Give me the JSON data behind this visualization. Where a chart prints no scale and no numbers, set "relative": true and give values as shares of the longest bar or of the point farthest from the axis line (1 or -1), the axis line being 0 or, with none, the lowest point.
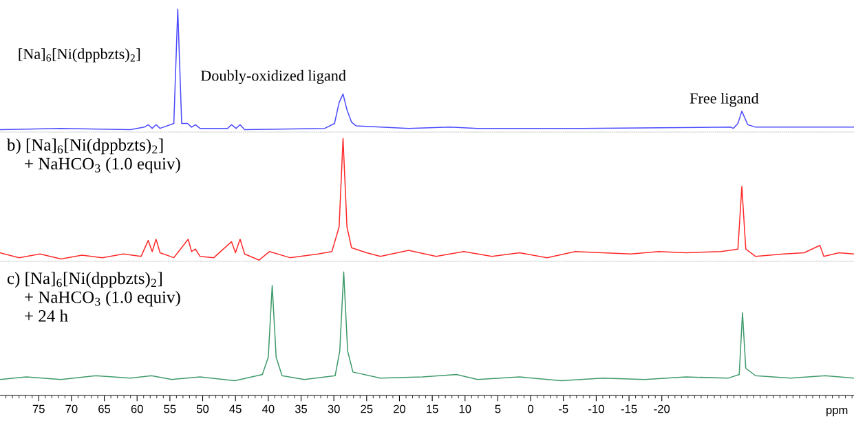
{
  "chart_data": [
    {
      "type": "line",
      "relative": true,
      "xlim": [
        80.9,
        -49.3
      ],
      "xticks": [
        75,
        70,
        65,
        60,
        55,
        50,
        45,
        40,
        35,
        30,
        25,
        20,
        15,
        10,
        5,
        0,
        -5,
        -10,
        -15,
        -20
      ],
      "tick_labels": false,
      "x": [
        80.9,
        71.6,
        61.0,
        58.9,
        58.3,
        57.7,
        57.1,
        56.5,
        54.4,
        53.8,
        53.2,
        52.3,
        51.7,
        51.1,
        50.4,
        46.2,
        45.6,
        44.9,
        44.3,
        43.6,
        31.4,
        29.9,
        29.2,
        28.6,
        28.0,
        27.3,
        26.6,
        18.6,
        12.3,
        8.1,
        -7.8,
        -30.5,
        -30.9,
        -31.6,
        -32.2,
        -33.1,
        -34.3,
        -49.3
      ],
      "series": [
        {
          "color": "#4b4bff",
          "values": [
            0.02,
            0.03,
            0.02,
            0.04,
            0.06,
            0.03,
            0.06,
            0.03,
            0.07,
            1.0,
            0.07,
            0.07,
            0.04,
            0.06,
            0.03,
            0.03,
            0.06,
            0.03,
            0.06,
            0.02,
            0.03,
            0.07,
            0.24,
            0.31,
            0.18,
            0.08,
            0.05,
            0.03,
            0.04,
            0.03,
            0.03,
            0.04,
            0.03,
            0.07,
            0.17,
            0.06,
            0.04,
            0.04
          ]
        }
      ],
      "annotations": [
        "[Na]$_{6}$[Ni(dppbzts)$_{2}$]",
        "Doubly-oxidized ligand",
        "Free ligand"
      ]
    },
    {
      "type": "line",
      "relative": true,
      "xlim": [
        80.9,
        -49.3
      ],
      "xticks": [
        75,
        70,
        65,
        60,
        55,
        50,
        45,
        40,
        35,
        30,
        25,
        20,
        15,
        10,
        5,
        0,
        -5,
        -10,
        -15,
        -20
      ],
      "tick_labels": false,
      "x": [
        80.9,
        78.0,
        74.8,
        71.6,
        68.4,
        65.3,
        62.1,
        59.4,
        58.3,
        57.7,
        57.1,
        56.5,
        54.4,
        52.2,
        51.7,
        51.1,
        50.4,
        48.3,
        45.6,
        45.0,
        44.3,
        43.6,
        41.4,
        39.8,
        36.7,
        32.4,
        30.3,
        29.2,
        28.6,
        28.0,
        27.3,
        25.0,
        22.9,
        18.6,
        14.4,
        10.2,
        5.9,
        1.7,
        -2.5,
        -6.8,
        -11.0,
        -15.3,
        -19.5,
        -23.7,
        -29.0,
        -31.6,
        -32.2,
        -32.8,
        -34.3,
        -38.6,
        -41.7,
        -44.1,
        -44.7,
        -47.0,
        -49.3
      ],
      "series": [
        {
          "color": "#ff2a2a",
          "values": [
            0.07,
            0.03,
            0.06,
            0.02,
            0.05,
            0.03,
            0.06,
            0.04,
            0.17,
            0.08,
            0.18,
            0.07,
            0.03,
            0.18,
            0.08,
            0.1,
            0.04,
            0.03,
            0.16,
            0.07,
            0.18,
            0.06,
            0.01,
            0.08,
            0.03,
            0.06,
            0.08,
            0.28,
            1.0,
            0.28,
            0.11,
            0.07,
            0.04,
            0.09,
            0.04,
            0.08,
            0.04,
            0.07,
            0.03,
            0.08,
            0.07,
            0.06,
            0.08,
            0.07,
            0.08,
            0.1,
            0.61,
            0.1,
            0.04,
            0.06,
            0.07,
            0.13,
            0.04,
            0.07,
            0.06
          ]
        }
      ],
      "annotations": [
        "b) [Na]$_{6}$[Ni(dppbzts)$_{2}$]\n    + NaHCO$_{3}$ (1.0 equiv)"
      ]
    },
    {
      "type": "line",
      "relative": true,
      "xlim": [
        80.9,
        -49.3
      ],
      "xticks": [
        75,
        70,
        65,
        60,
        55,
        50,
        45,
        40,
        35,
        30,
        25,
        20,
        15,
        10,
        5,
        0,
        -5,
        -10,
        -15,
        -20
      ],
      "tick_labels": "x",
      "xlabel": "ppm",
      "x": [
        80.9,
        76.9,
        71.6,
        66.3,
        61.0,
        57.8,
        54.7,
        50.4,
        45.1,
        40.9,
        40.0,
        39.4,
        38.8,
        37.9,
        34.5,
        29.8,
        29.1,
        28.5,
        27.9,
        27.1,
        22.9,
        16.5,
        11.3,
        8.1,
        1.7,
        -4.7,
        -11.0,
        -17.4,
        -23.7,
        -30.1,
        -31.8,
        -32.3,
        -32.8,
        -34.3,
        -39.6,
        -44.9,
        -49.3
      ],
      "series": [
        {
          "color": "#3f9a6a",
          "values": [
            0.13,
            0.15,
            0.13,
            0.16,
            0.14,
            0.16,
            0.13,
            0.15,
            0.12,
            0.17,
            0.31,
            0.89,
            0.31,
            0.16,
            0.13,
            0.16,
            0.36,
            1.0,
            0.36,
            0.19,
            0.14,
            0.15,
            0.17,
            0.13,
            0.15,
            0.12,
            0.14,
            0.13,
            0.15,
            0.14,
            0.17,
            0.67,
            0.22,
            0.16,
            0.14,
            0.16,
            0.14
          ]
        }
      ],
      "annotations": [
        "c) [Na]$_{6}$[Ni(dppbzts)$_{2}$]\n    + NaHCO$_{3}$ (1.0 equiv)\n    + 24 h"
      ]
    }
  ]
}
